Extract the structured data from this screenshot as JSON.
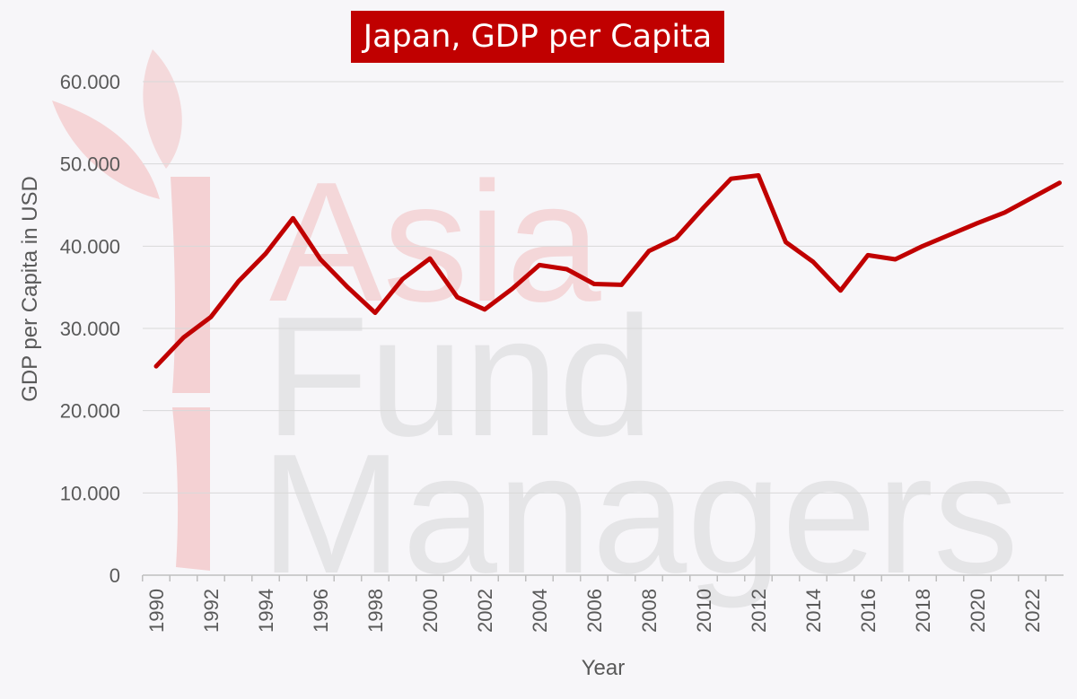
{
  "chart_data": {
    "type": "line",
    "title": "Japan, GDP per Capita",
    "xlabel": "Year",
    "ylabel": "GDP per Capita in USD",
    "ylim": [
      0,
      60000
    ],
    "xlim": [
      1990,
      2023
    ],
    "y_ticks": [
      {
        "value": 0,
        "label": "0"
      },
      {
        "value": 10000,
        "label": "10.000"
      },
      {
        "value": 20000,
        "label": "20.000"
      },
      {
        "value": 30000,
        "label": "30.000"
      },
      {
        "value": 40000,
        "label": "40.000"
      },
      {
        "value": 50000,
        "label": "50.000"
      },
      {
        "value": 60000,
        "label": "60.000"
      }
    ],
    "x_ticks": [
      "1990",
      "1992",
      "1994",
      "1996",
      "1998",
      "2000",
      "2002",
      "2004",
      "2006",
      "2008",
      "2010",
      "2012",
      "2014",
      "2016",
      "2018",
      "2020",
      "2022"
    ],
    "grid": true,
    "color": "#c00000",
    "series": [
      {
        "x": [
          1990,
          1991,
          1992,
          1993,
          1994,
          1995,
          1996,
          1997,
          1998,
          1999,
          2000,
          2001,
          2002,
          2003,
          2004,
          2005,
          2006,
          2007,
          2008,
          2009,
          2010,
          2011,
          2012,
          2013,
          2014,
          2015,
          2016,
          2017,
          2018,
          2019,
          2020,
          2021,
          2022,
          2023
        ],
        "values": [
          25400,
          28900,
          31400,
          35700,
          39100,
          43400,
          38400,
          35000,
          31900,
          36000,
          38500,
          33800,
          32300,
          34800,
          37700,
          37200,
          35400,
          35300,
          39400,
          41000,
          44700,
          48200,
          48600,
          40500,
          38100,
          34600,
          38900,
          38400,
          40000,
          41400,
          42800,
          44100,
          45900,
          47700
        ]
      }
    ]
  },
  "watermark": {
    "line1": "Asia",
    "line2": "Fund",
    "line3": "Managers"
  }
}
